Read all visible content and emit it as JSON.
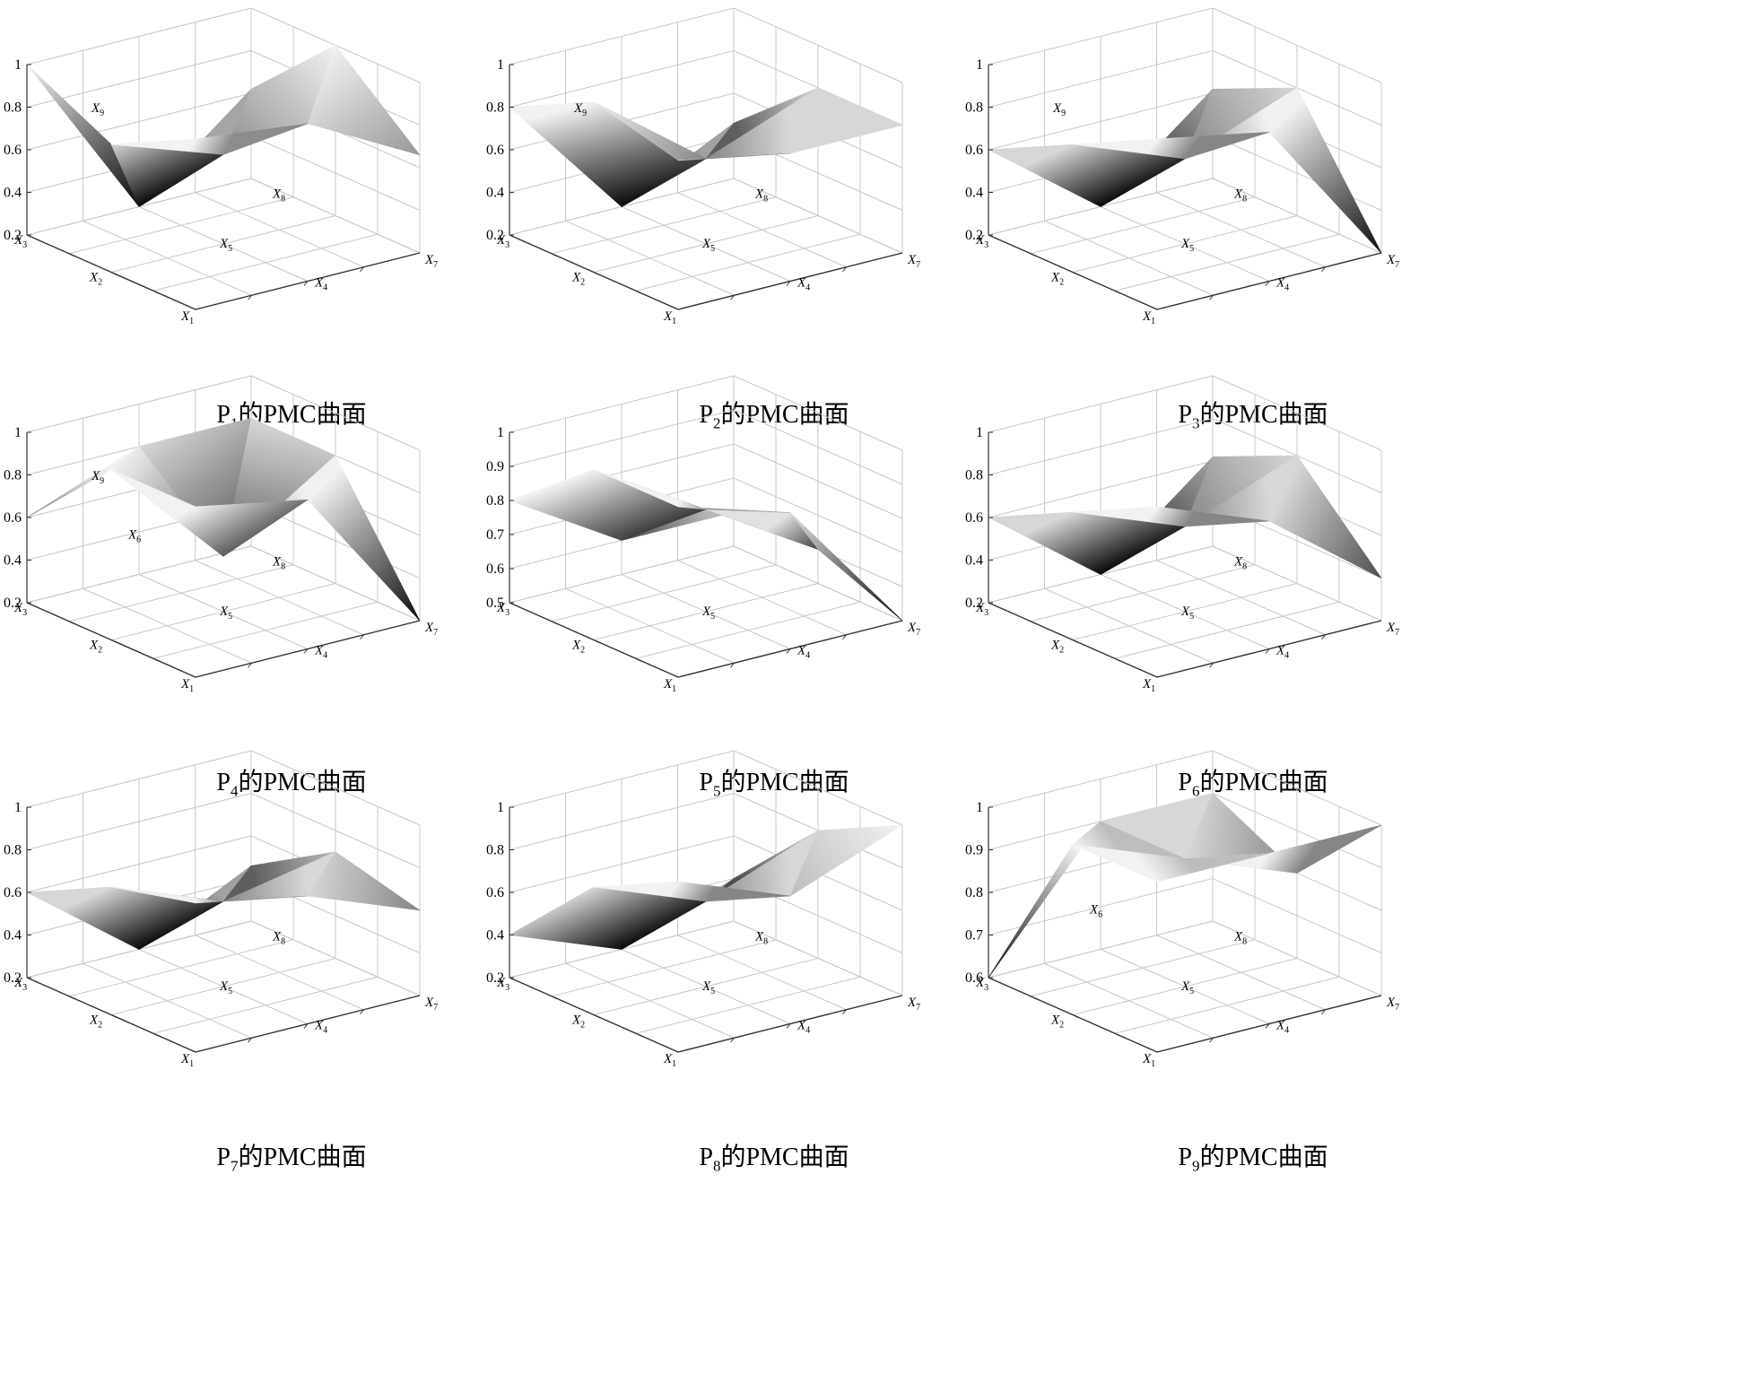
{
  "colors": {
    "grid": "#c8c8c8",
    "axis": "#333333",
    "surface_dark": "#0a0a0a",
    "surface_light": "#f2f2f2"
  },
  "chart_data": [
    {
      "type": "surface",
      "title": "P1的PMC曲面",
      "policy": "P",
      "subscript": "1",
      "suffix": "的PMC曲面",
      "zlim": [
        0.2,
        1
      ],
      "zticks": [
        "0.2",
        "0.4",
        "0.6",
        "0.8",
        "1"
      ],
      "axis_labels": [
        "X3",
        "X2",
        "X1",
        "X9",
        "X5",
        "X4",
        "X8",
        "X7"
      ],
      "matrix": [
        [
          1.0,
          0.2,
          0.62
        ],
        [
          0.8,
          0.62,
          1.0
        ],
        [
          1.0,
          0.94,
          0.66
        ]
      ]
    },
    {
      "type": "surface",
      "title": "P2的PMC曲面",
      "policy": "P",
      "subscript": "2",
      "suffix": "的PMC曲面",
      "zlim": [
        0.2,
        1
      ],
      "zticks": [
        "0.2",
        "0.4",
        "0.6",
        "0.8",
        "1"
      ],
      "axis_labels": [
        "X3",
        "X2",
        "X1",
        "X9",
        "X5",
        "X4",
        "X8",
        "X7"
      ],
      "matrix": [
        [
          0.8,
          0.2,
          0.46
        ],
        [
          1.0,
          0.6,
          0.8
        ],
        [
          0.9,
          0.8,
          0.8
        ]
      ]
    },
    {
      "type": "surface",
      "title": "P3的PMC曲面",
      "policy": "P",
      "subscript": "3",
      "suffix": "的PMC曲面",
      "zlim": [
        0.2,
        1
      ],
      "zticks": [
        "0.2",
        "0.4",
        "0.6",
        "0.8",
        "1"
      ],
      "axis_labels": [
        "X3",
        "X2",
        "X1",
        "X9",
        "X5",
        "X4",
        "X8",
        "X7"
      ],
      "matrix": [
        [
          0.6,
          0.2,
          0.62
        ],
        [
          0.8,
          0.6,
          0.8
        ],
        [
          1.0,
          0.9,
          0.2
        ]
      ]
    },
    {
      "type": "surface",
      "title": "P4的PMC曲面",
      "policy": "P",
      "subscript": "4",
      "suffix": "的PMC曲面",
      "zlim": [
        0.2,
        1
      ],
      "zticks": [
        "0.2",
        "0.4",
        "0.6",
        "0.8",
        "1"
      ],
      "axis_labels": [
        "X3",
        "X2",
        "X1",
        "X6",
        "X9",
        "X5",
        "X4",
        "X8",
        "X7"
      ],
      "matrix": [
        [
          0.6,
          0.8,
          0.8
        ],
        [
          1.0,
          0.46,
          0.8
        ],
        [
          1.0,
          0.9,
          0.2
        ]
      ]
    },
    {
      "type": "surface",
      "title": "P5的PMC曲面",
      "policy": "P",
      "subscript": "5",
      "suffix": "的PMC曲面",
      "zlim": [
        0.5,
        1
      ],
      "zticks": [
        "0.5",
        "0.6",
        "0.7",
        "0.8",
        "0.9",
        "1"
      ],
      "axis_labels": [
        "X3",
        "X2",
        "X1",
        "X5",
        "X4",
        "X7"
      ],
      "matrix": [
        [
          0.8,
          0.6,
          0.6
        ],
        [
          1.0,
          0.8,
          0.6
        ],
        [
          1.0,
          0.9,
          0.5
        ]
      ]
    },
    {
      "type": "surface",
      "title": "P6的PMC曲面",
      "policy": "P",
      "subscript": "6",
      "suffix": "的PMC曲面",
      "zlim": [
        0.2,
        1
      ],
      "zticks": [
        "0.2",
        "0.4",
        "0.6",
        "0.8",
        "1"
      ],
      "axis_labels": [
        "X3",
        "X2",
        "X1",
        "X5",
        "X4",
        "X8",
        "X7"
      ],
      "matrix": [
        [
          0.6,
          0.2,
          0.62
        ],
        [
          0.8,
          0.6,
          0.8
        ],
        [
          1.0,
          0.8,
          0.4
        ]
      ]
    },
    {
      "type": "surface",
      "title": "P7的PMC曲面",
      "policy": "P",
      "subscript": "7",
      "suffix": "的PMC曲面",
      "zlim": [
        0.2,
        1
      ],
      "zticks": [
        "0.2",
        "0.4",
        "0.6",
        "0.8",
        "1"
      ],
      "axis_labels": [
        "X3",
        "X2",
        "X1",
        "X5",
        "X4",
        "X8",
        "X7"
      ],
      "matrix": [
        [
          0.6,
          0.2,
          0.46
        ],
        [
          0.8,
          0.6,
          0.7
        ],
        [
          0.9,
          0.8,
          0.6
        ]
      ]
    },
    {
      "type": "surface",
      "title": "P8的PMC曲面",
      "policy": "P",
      "subscript": "8",
      "suffix": "的PMC曲面",
      "zlim": [
        0.2,
        1
      ],
      "zticks": [
        "0.2",
        "0.4",
        "0.6",
        "0.8",
        "1"
      ],
      "axis_labels": [
        "X3",
        "X2",
        "X1",
        "X5",
        "X4",
        "X8",
        "X7"
      ],
      "matrix": [
        [
          0.4,
          0.2,
          0.4
        ],
        [
          0.8,
          0.6,
          0.8
        ],
        [
          1.0,
          0.8,
          1.0
        ]
      ]
    },
    {
      "type": "surface",
      "title": "P9的PMC曲面",
      "policy": "P",
      "subscript": "9",
      "suffix": "的PMC曲面",
      "zlim": [
        0.6,
        1
      ],
      "zticks": [
        "0.6",
        "0.7",
        "0.8",
        "0.9",
        "1"
      ],
      "axis_labels": [
        "X3",
        "X2",
        "X1",
        "X6",
        "X5",
        "X4",
        "X8",
        "X7"
      ],
      "matrix": [
        [
          0.6,
          0.9,
          0.9
        ],
        [
          1.0,
          0.9,
          0.8
        ],
        [
          1.0,
          1.0,
          1.0
        ]
      ]
    }
  ]
}
